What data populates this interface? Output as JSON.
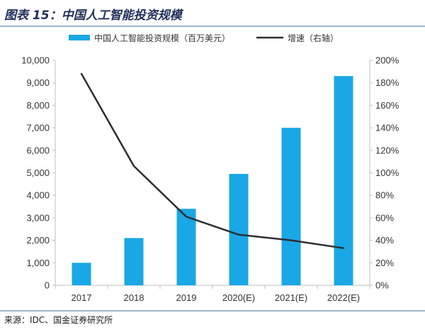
{
  "header": {
    "title": "图表 15：中国人工智能投资规模"
  },
  "footer": {
    "source": "来源：IDC、国金证券研究所"
  },
  "colors": {
    "bar": "#1aa7e6",
    "line": "#2b2f33",
    "axis": "#bfbfbf",
    "title": "#1f2f5a",
    "rule": "#9fb6cc"
  },
  "chart_data": {
    "type": "bar",
    "categories": [
      "2017",
      "2018",
      "2019",
      "2020(E)",
      "2021(E)",
      "2022(E)"
    ],
    "series": [
      {
        "name": "中国人工智能投资规模（百万美元）",
        "type": "bar",
        "axis": "left",
        "values": [
          1000,
          2100,
          3400,
          4950,
          7000,
          9300
        ]
      },
      {
        "name": "增速（右轴）",
        "type": "line",
        "axis": "right",
        "values": [
          188,
          106,
          61,
          45,
          40,
          33
        ]
      }
    ],
    "y_left": {
      "ylim": [
        0,
        10000
      ],
      "tick_labels": [
        "0",
        "1,000",
        "2,000",
        "3,000",
        "4,000",
        "5,000",
        "6,000",
        "7,000",
        "8,000",
        "9,000",
        "10,000"
      ]
    },
    "y_right": {
      "ylim": [
        0,
        200
      ],
      "tick_labels": [
        "0%",
        "20%",
        "40%",
        "60%",
        "80%",
        "100%",
        "120%",
        "140%",
        "160%",
        "180%",
        "200%"
      ]
    },
    "grid": false,
    "legend": "top"
  }
}
